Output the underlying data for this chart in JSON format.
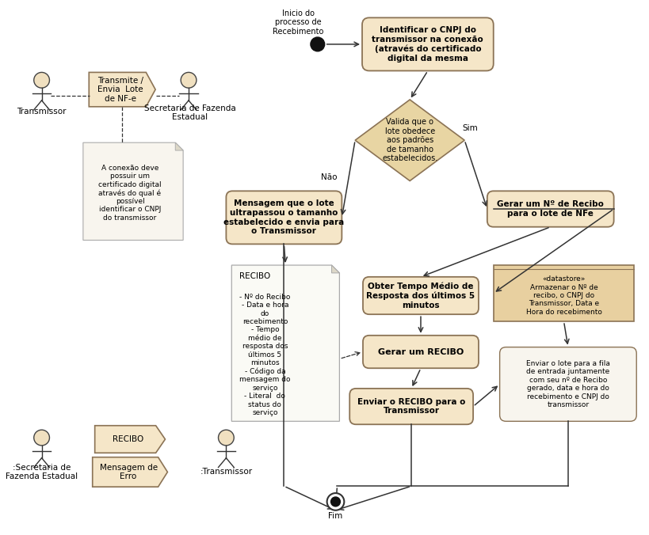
{
  "bg_color": "#ffffff",
  "box_fill": "#f5e6c8",
  "box_edge": "#8b7355",
  "diamond_fill": "#e8d5a3",
  "diamond_edge": "#8b7355",
  "datastore_fill": "#e8d0a0",
  "datastore_edge": "#8b7355",
  "arrow_color": "#333333",
  "title_text": "Inicio do\nprocesso de\nRecebimento",
  "node1_text": "Identificar o CNPJ do\ntransmissor na conexão\n(através do certificado\ndigital da mesma",
  "diamond1_text": "Valida que o\nlote obedece\naos padrões\nde tamanho\nestabelecidos.",
  "node2_text": "Mensagem que o lote\nultrapassou o tamanho\nestabelecido e envia para\no Transmissor",
  "node3_text": "Gerar um Nº de Recibo\npara o lote de NFe",
  "node4_text": "Obter Tempo Médio de\nResposta dos últimos 5\nminutos",
  "node5_text": "Gerar um RECIBO",
  "node6_text": "Enviar o RECIBO para o\nTransmissor",
  "datastore_text": "«datastore»\nArmazenar o Nº de\nrecibo, o CNPJ do\nTransmissor, Data e\nHora do recebimento",
  "node7_text": "Enviar o lote para a fila\nde entrada juntamente\ncom seu nº de Recibo\ngerado, data e hora do\nrecebimento e CNPJ do\ntransmissor",
  "doc_title": "RECIBO",
  "doc_items": "- Nº do Recibo\n- Data e hora\ndo\nrecebimento\n- Tempo\nmédio de\nresposta dos\núltimos 5\nminutos\n- Código da\nmensagem do\nserviço\n- Literal  do\nstatus do\nserviço",
  "note_text": "A conexão deve\npossuir um\ncertificado digital\natravés do qual é\npossível\nidentificar o CNPJ\ndo transmissor",
  "hexagon1_text": "Transmite /\nEnvia  Lote\nde NF-e",
  "hexagon2_text": "RECIBO",
  "hexagon3_text": "Mensagem de\nErro",
  "actor1_label": "Transmissor",
  "actor2_label": "Secretaria de Fazenda\nEstadual",
  "actor3_label": ":Secretaria de\nFazenda Estadual",
  "actor4_label": ":Transmissor",
  "label_nao": "Não",
  "label_sim": "Sim",
  "label_fim": "Fim"
}
